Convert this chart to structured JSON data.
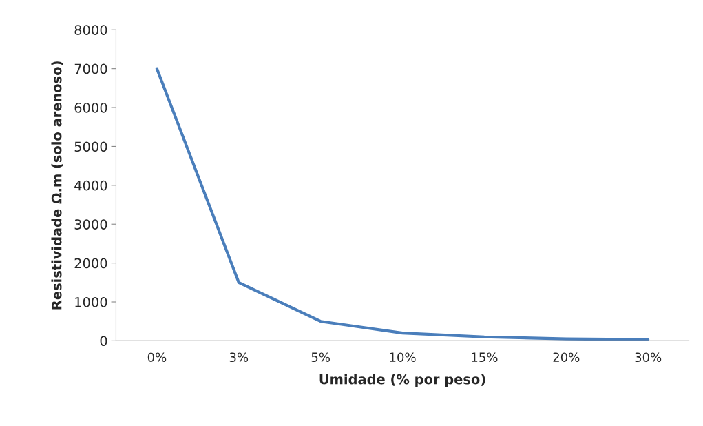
{
  "chart_data": {
    "type": "line",
    "xlabel": "Umidade (% por peso)",
    "ylabel": "Resistividade Ω.m (solo arenoso)",
    "categories": [
      "0%",
      "3%",
      "5%",
      "10%",
      "15%",
      "20%",
      "30%"
    ],
    "series": [
      {
        "color": "#4a7ebb",
        "values": [
          7000,
          1500,
          500,
          200,
          100,
          50,
          30
        ]
      }
    ],
    "ylim": [
      0,
      8000
    ],
    "yticks": [
      0,
      1000,
      2000,
      3000,
      4000,
      5000,
      6000,
      7000,
      8000
    ],
    "grid": false,
    "marker": "none",
    "line_style": "solid"
  }
}
